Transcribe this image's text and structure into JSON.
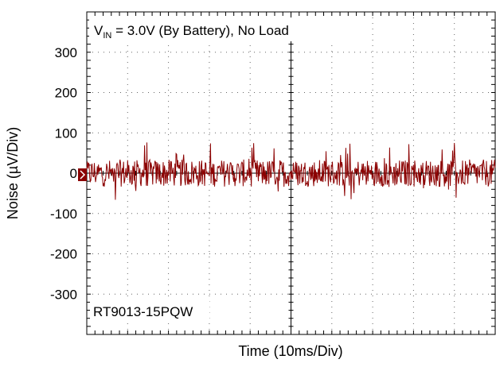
{
  "chart_data": {
    "type": "line",
    "title_main": "V",
    "title_sub": "IN",
    "title_rest": " = 3.0V (By Battery), No Load",
    "part_label": "RT9013-15PQW",
    "xlabel": "Time  (10ms/Div)",
    "ylabel": "Noise  (µV/Div)",
    "yticks": [
      300,
      200,
      100,
      0,
      -100,
      -200,
      -300
    ],
    "ylim": [
      -400,
      400
    ],
    "xlim": [
      0,
      100
    ],
    "x_unit": "ms",
    "x_divisions": 10,
    "y_divisions": 8,
    "grid": true,
    "series": [
      {
        "color": "#8b0000",
        "noise_baseline": 0,
        "noise_typical_peak": 45,
        "noise_max_peak": 80,
        "points": 700
      }
    ],
    "marker_color": "#8b0000"
  }
}
